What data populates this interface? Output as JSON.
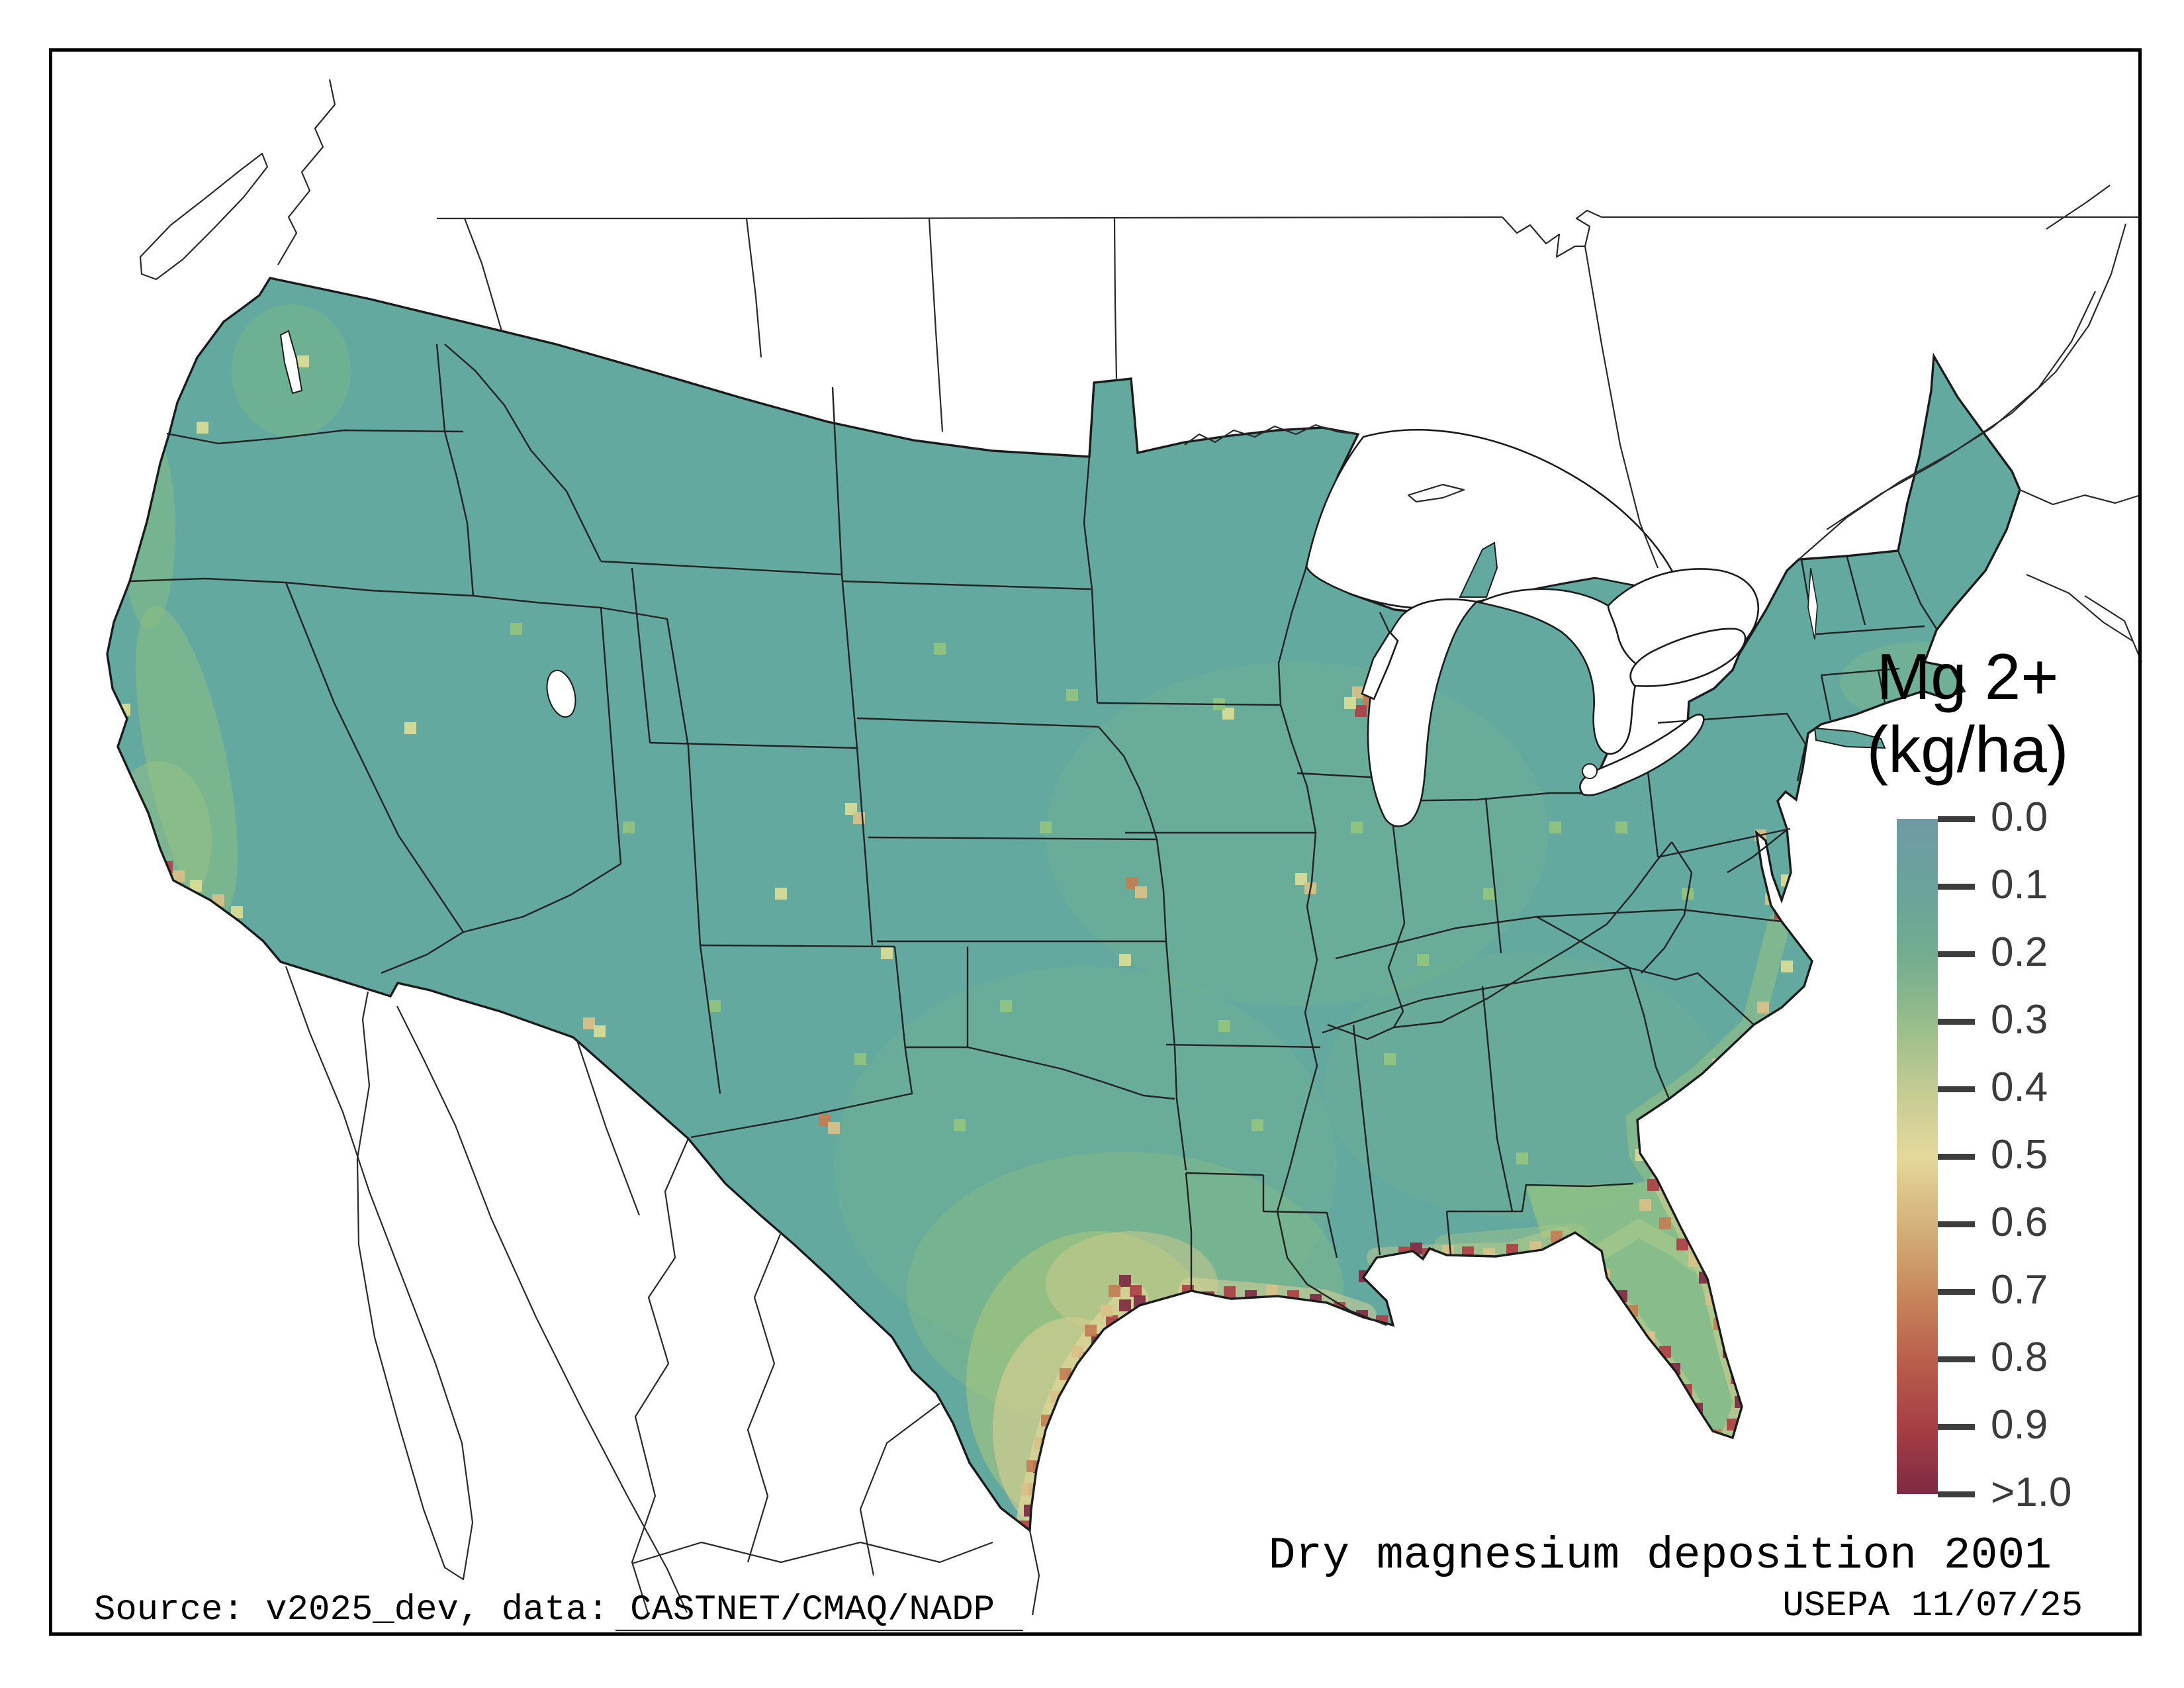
{
  "figure": {
    "map_title": "Dry magnesium deposition 2001",
    "agency_line": "USEPA 11/07/25",
    "source_line": "Source: v2025_dev, data: CASTNET/CMAQ/NADP"
  },
  "legend": {
    "title_line1": "Mg 2+",
    "title_line2": "(kg/ha)",
    "tick_labels": [
      "0.0",
      "0.1",
      "0.2",
      "0.3",
      "0.4",
      "0.5",
      "0.6",
      "0.7",
      "0.8",
      "0.9",
      ">1.0"
    ],
    "tick_color": "#3d3d3d"
  },
  "map_data": {
    "type": "raster-choropleth-map",
    "region": "Contiguous United States with Canada and Mexico outlines",
    "variable": "Dry magnesium deposition",
    "units": "kg/ha",
    "year": "2001",
    "colormap_stops": [
      {
        "label": "0.0",
        "color": "#6F9AA4"
      },
      {
        "label": "0.1",
        "color": "#6AA39B"
      },
      {
        "label": "0.2",
        "color": "#72AC8F"
      },
      {
        "label": "0.3",
        "color": "#96BC8B"
      },
      {
        "label": "0.4",
        "color": "#C3CB93"
      },
      {
        "label": "0.5",
        "color": "#E5D89B"
      },
      {
        "label": "0.6",
        "color": "#D4B27B"
      },
      {
        "label": "0.7",
        "color": "#C8895D"
      },
      {
        "label": "0.8",
        "color": "#B95F4B"
      },
      {
        "label": "0.9",
        "color": "#A73F45"
      },
      {
        "label": ">1.0",
        "color": "#7E2A43"
      }
    ],
    "base_color": "#63A9A0",
    "outline_color": "#1b1b1b",
    "water_color": "#ffffff",
    "cell_palette": {
      "g": "#93C47F",
      "y": "#D9DD96",
      "t": "#D9C089",
      "o": "#C27E52",
      "r": "#AC4046",
      "m": "#7E2A42"
    },
    "region_summary": [
      {
        "region": "Most of the western US, plains and Northeast",
        "approx_value_kg_ha": "0.1–0.2"
      },
      {
        "region": "Upper Midwest and interior Southeast",
        "approx_value_kg_ha": "0.2–0.3"
      },
      {
        "region": "Florida peninsula and Atlantic coastal fringe",
        "approx_value_kg_ha": "0.3–0.6"
      },
      {
        "region": "Texas–Louisiana Gulf Coast",
        "approx_value_kg_ha": "0.6–1.0"
      },
      {
        "region": "South Texas coast and scattered urban/coastal cells",
        "approx_value_kg_ha": ">1.0"
      }
    ]
  }
}
